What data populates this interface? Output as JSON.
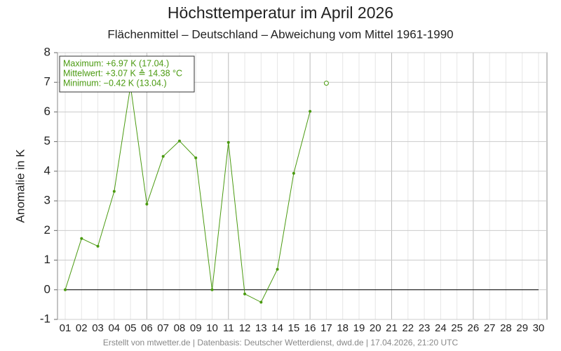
{
  "chart_data": {
    "type": "line",
    "title": "Höchsttemperatur im April 2026",
    "subtitle": "Flächenmittel – Deutschland – Abweichung vom Mittel 1961-1990",
    "ylabel": "Anomalie in K",
    "footer": "Erstellt von mtwetter.de | Datenbasis: Deutscher Wetterdienst, dwd.de | 17.04.2026, 21:20 UTC",
    "annotations": [
      "Maximum: +6.97 K  (17.04.)",
      "Mittelwert: +3.07 K  ≙  14.38 °C",
      "Minimum:  −0.42 K  (13.04.)"
    ],
    "categories": [
      "01",
      "02",
      "03",
      "04",
      "05",
      "06",
      "07",
      "08",
      "09",
      "10",
      "11",
      "12",
      "13",
      "14",
      "15",
      "16",
      "17",
      "18",
      "19",
      "20",
      "21",
      "22",
      "23",
      "24",
      "25",
      "26",
      "27",
      "28",
      "29",
      "30"
    ],
    "series": [
      {
        "color": "#4a9a10",
        "values": [
          0.0,
          1.73,
          1.47,
          3.32,
          6.88,
          2.89,
          4.5,
          5.02,
          4.45,
          0.0,
          4.97,
          -0.14,
          -0.42,
          0.69,
          3.93,
          6.02,
          null,
          null,
          null,
          null,
          null,
          null,
          null,
          null,
          null,
          null,
          null,
          null,
          null,
          null
        ]
      },
      {
        "color": "#4a9a10",
        "marker": "open-circle",
        "values": [
          null,
          null,
          null,
          null,
          null,
          null,
          null,
          null,
          null,
          null,
          null,
          null,
          null,
          null,
          null,
          null,
          6.97,
          null,
          null,
          null,
          null,
          null,
          null,
          null,
          null,
          null,
          null,
          null,
          null,
          null
        ]
      }
    ],
    "ylim": [
      -1,
      8
    ],
    "yticks": [
      -1,
      0,
      1,
      2,
      3,
      4,
      5,
      6,
      7,
      8
    ],
    "grid": true
  }
}
